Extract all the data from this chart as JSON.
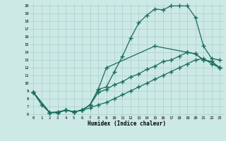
{
  "xlabel": "Humidex (Indice chaleur)",
  "bg_color": "#cce9e5",
  "grid_color": "#aacfca",
  "line_color": "#1a6b5e",
  "xlim": [
    -0.5,
    23.5
  ],
  "ylim": [
    5.8,
    20.4
  ],
  "xticks": [
    0,
    1,
    2,
    3,
    4,
    5,
    6,
    7,
    8,
    9,
    10,
    11,
    12,
    13,
    14,
    15,
    16,
    17,
    18,
    19,
    20,
    21,
    22,
    23
  ],
  "yticks": [
    6,
    7,
    8,
    9,
    10,
    11,
    12,
    13,
    14,
    15,
    16,
    17,
    18,
    19,
    20
  ],
  "line1_x": [
    0,
    1,
    2,
    3,
    4,
    5,
    6,
    7,
    8,
    9,
    10,
    11,
    12,
    13,
    14,
    15,
    16,
    17,
    18,
    19,
    20,
    21,
    22,
    23
  ],
  "line1_y": [
    8.8,
    7.2,
    6.2,
    6.3,
    6.5,
    6.3,
    6.5,
    7.2,
    9.2,
    9.5,
    11.5,
    13.5,
    15.8,
    17.8,
    18.8,
    19.6,
    19.5,
    20.0,
    20.0,
    20.0,
    18.5,
    14.8,
    13.2,
    13.0
  ],
  "line2_x": [
    0,
    2,
    3,
    4,
    5,
    6,
    7,
    8,
    9,
    15,
    19,
    20,
    21,
    22,
    23
  ],
  "line2_y": [
    8.8,
    6.2,
    6.2,
    6.5,
    6.3,
    6.5,
    7.2,
    9.2,
    12.0,
    14.8,
    14.0,
    13.8,
    13.0,
    12.8,
    12.0
  ],
  "line3_x": [
    0,
    2,
    3,
    4,
    5,
    6,
    7,
    8,
    9,
    10,
    11,
    12,
    13,
    14,
    15,
    16,
    17,
    18,
    19,
    20,
    21,
    22,
    23
  ],
  "line3_y": [
    8.8,
    6.2,
    6.2,
    6.5,
    6.3,
    6.5,
    7.2,
    8.8,
    9.2,
    9.8,
    10.2,
    10.8,
    11.2,
    11.8,
    12.2,
    12.8,
    13.0,
    13.5,
    14.0,
    13.8,
    13.0,
    12.8,
    12.0
  ],
  "line4_x": [
    0,
    2,
    3,
    4,
    5,
    6,
    7,
    8,
    9,
    10,
    11,
    12,
    13,
    14,
    15,
    16,
    17,
    18,
    19,
    20,
    21,
    22,
    23
  ],
  "line4_y": [
    8.8,
    6.2,
    6.2,
    6.5,
    6.3,
    6.5,
    6.8,
    7.2,
    7.5,
    8.0,
    8.5,
    9.0,
    9.5,
    10.0,
    10.5,
    11.0,
    11.5,
    12.0,
    12.5,
    13.0,
    13.2,
    12.5,
    12.0
  ]
}
